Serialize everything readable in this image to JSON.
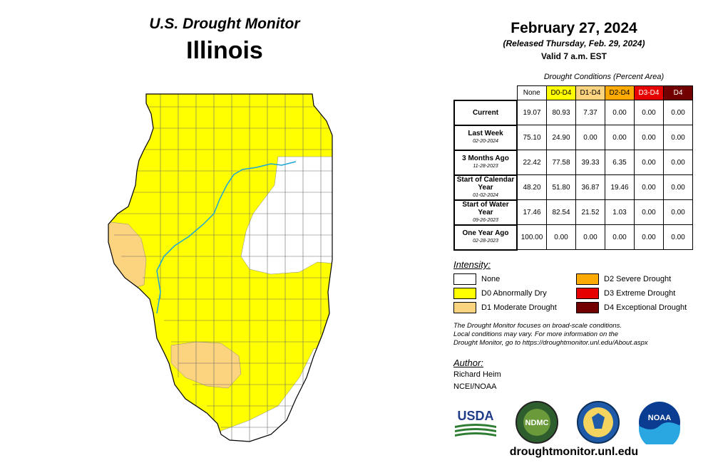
{
  "header": {
    "monitor": "U.S. Drought Monitor",
    "state": "Illinois"
  },
  "date": {
    "title": "February 27, 2024",
    "released": "(Released Thursday, Feb. 29, 2024)",
    "valid": "Valid 7 a.m. EST"
  },
  "table": {
    "caption": "Drought Conditions (Percent Area)",
    "columns": [
      {
        "label": "None",
        "color": "#ffffff"
      },
      {
        "label": "D0-D4",
        "color": "#ffff00"
      },
      {
        "label": "D1-D4",
        "color": "#fcd37f"
      },
      {
        "label": "D2-D4",
        "color": "#ffaa00"
      },
      {
        "label": "D3-D4",
        "color": "#e60000"
      },
      {
        "label": "D4",
        "color": "#730000"
      }
    ],
    "rows": [
      {
        "label": "Current",
        "date": "",
        "values": [
          "19.07",
          "80.93",
          "7.37",
          "0.00",
          "0.00",
          "0.00"
        ]
      },
      {
        "label": "Last Week",
        "date": "02-20-2024",
        "values": [
          "75.10",
          "24.90",
          "0.00",
          "0.00",
          "0.00",
          "0.00"
        ]
      },
      {
        "label": "3 Months Ago",
        "date": "11-28-2023",
        "values": [
          "22.42",
          "77.58",
          "39.33",
          "6.35",
          "0.00",
          "0.00"
        ]
      },
      {
        "label": "Start of Calendar Year",
        "date": "01-02-2024",
        "values": [
          "48.20",
          "51.80",
          "36.87",
          "19.46",
          "0.00",
          "0.00"
        ]
      },
      {
        "label": "Start of Water Year",
        "date": "09-26-2023",
        "values": [
          "17.46",
          "82.54",
          "21.52",
          "1.03",
          "0.00",
          "0.00"
        ]
      },
      {
        "label": "One Year Ago",
        "date": "02-28-2023",
        "values": [
          "100.00",
          "0.00",
          "0.00",
          "0.00",
          "0.00",
          "0.00"
        ]
      }
    ]
  },
  "legend": {
    "title": "Intensity:",
    "items": [
      {
        "label": "None",
        "color": "#ffffff"
      },
      {
        "label": "D0 Abnormally Dry",
        "color": "#ffff00"
      },
      {
        "label": "D1 Moderate Drought",
        "color": "#fcd37f"
      },
      {
        "label": "D2 Severe Drought",
        "color": "#ffaa00"
      },
      {
        "label": "D3 Extreme Drought",
        "color": "#e60000"
      },
      {
        "label": "D4 Exceptional Drought",
        "color": "#730000"
      }
    ]
  },
  "note": {
    "line1": "The Drought Monitor focuses on broad-scale conditions.",
    "line2": "Local conditions may vary. For more information on the",
    "line3": "Drought Monitor, go to https://droughtmonitor.unl.edu/About.aspx"
  },
  "author": {
    "title": "Author:",
    "name": "Richard Heim",
    "org": "NCEI/NOAA"
  },
  "logos": {
    "usda": "USDA",
    "ndmc": "NDMC",
    "noaa": "NOAA"
  },
  "url": "droughtmonitor.unl.edu"
}
